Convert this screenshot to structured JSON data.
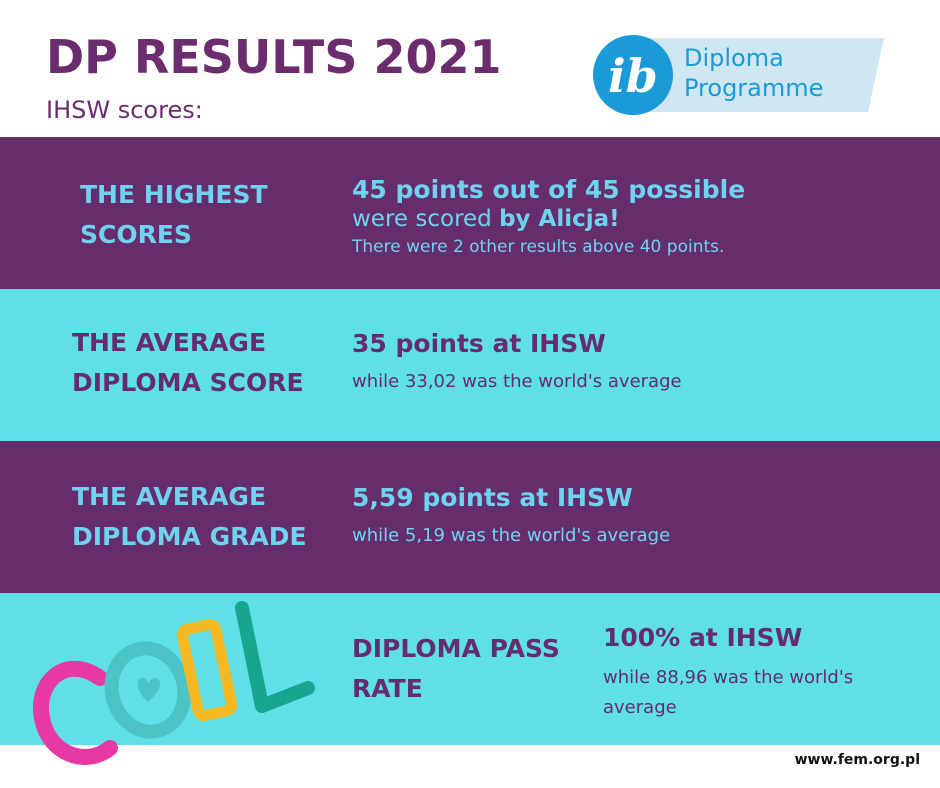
{
  "header": {
    "title": "DP RESULTS 2021",
    "subtitle": "IHSW scores:"
  },
  "logo": {
    "mark": "ib",
    "line1": "Diploma",
    "line2": "Programme"
  },
  "sections": [
    {
      "label_line1": "THE HIGHEST",
      "label_line2": "SCORES",
      "main": "45 points out of 45 possible",
      "mid_prefix": "were scored ",
      "mid_bold": "by Alicja!",
      "detail": "There were 2 other results above 40 points."
    },
    {
      "label_line1": "THE AVERAGE",
      "label_line2": "DIPLOMA SCORE",
      "main": "35 points at IHSW",
      "detail": "while 33,02 was the world's average"
    },
    {
      "label_line1": "THE AVERAGE",
      "label_line2": "DIPLOMA GRADE",
      "main": "5,59 points at IHSW",
      "detail": "while 5,19 was the world's average"
    },
    {
      "label_line1": "DIPLOMA PASS",
      "label_line2": "RATE",
      "main": "100% at IHSW",
      "detail_line1": "while 88,96 was the world's",
      "detail_line2": "average"
    }
  ],
  "footer": "www.fem.org.pl",
  "colors": {
    "purple": "#652d6b",
    "cyan": "#5fe0e6",
    "title": "#6b2d6e",
    "light_blue_text": "#6fd3f0"
  },
  "icons": {
    "logo": "ib-diploma-programme-logo",
    "doodle": "cool-lettering-doodle"
  }
}
